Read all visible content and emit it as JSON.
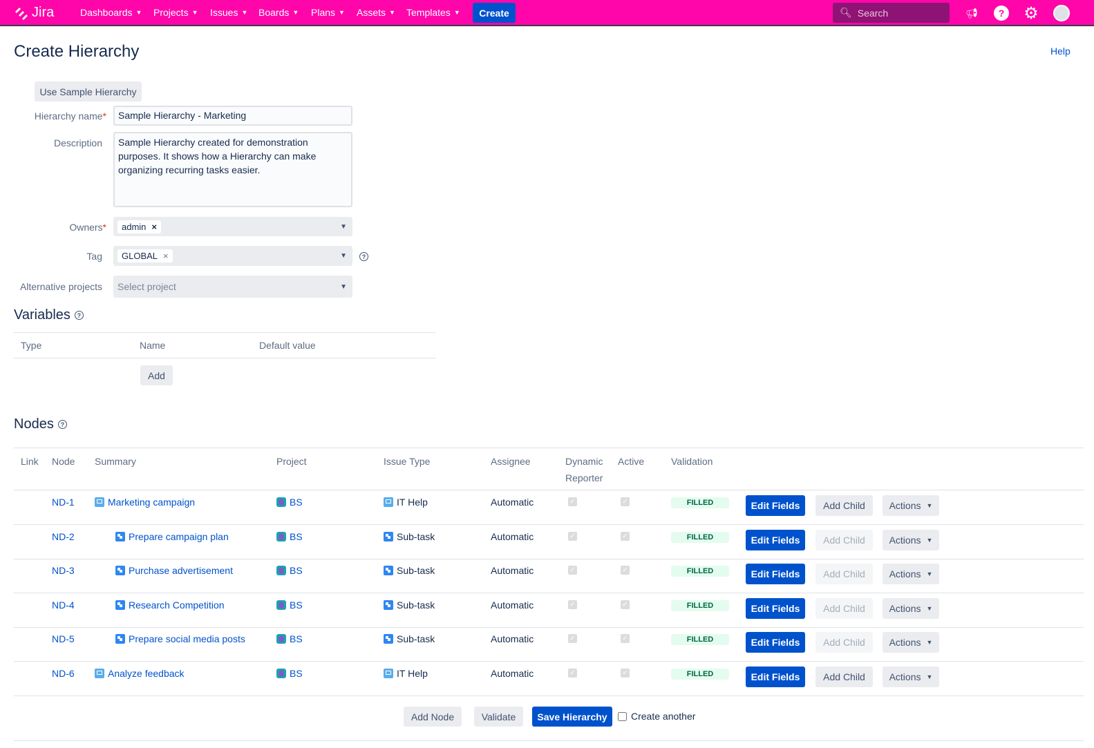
{
  "nav": {
    "logo": "Jira",
    "items": [
      "Dashboards",
      "Projects",
      "Issues",
      "Boards",
      "Plans",
      "Assets",
      "Templates"
    ],
    "create": "Create",
    "search_placeholder": "Search"
  },
  "page": {
    "title": "Create Hierarchy",
    "help": "Help"
  },
  "form": {
    "sample_button": "Use Sample Hierarchy",
    "name_label": "Hierarchy name",
    "name_value": "Sample Hierarchy - Marketing",
    "description_label": "Description",
    "description_value": "Sample Hierarchy created for demonstration purposes. It shows how a Hierarchy can make organizing recurring tasks easier.",
    "owners_label": "Owners",
    "owners_value": "admin",
    "tag_label": "Tag",
    "tag_value": "GLOBAL",
    "alt_label": "Alternative projects",
    "alt_placeholder": "Select project"
  },
  "variables": {
    "title": "Variables",
    "headers": [
      "Type",
      "Name",
      "Default value"
    ],
    "add": "Add"
  },
  "nodes": {
    "title": "Nodes",
    "headers": [
      "Link",
      "Node",
      "Summary",
      "Project",
      "Issue Type",
      "Assignee",
      "Dynamic Reporter",
      "Active",
      "Validation"
    ],
    "rows": [
      {
        "node": "ND-1",
        "summary": "Marketing campaign",
        "level": 0,
        "project": "BS",
        "issue_type": "IT Help",
        "assignee": "Automatic",
        "validation": "FILLED",
        "add_child_enabled": true
      },
      {
        "node": "ND-2",
        "summary": "Prepare campaign plan",
        "level": 1,
        "project": "BS",
        "issue_type": "Sub-task",
        "assignee": "Automatic",
        "validation": "FILLED",
        "add_child_enabled": false
      },
      {
        "node": "ND-3",
        "summary": "Purchase advertisement",
        "level": 1,
        "project": "BS",
        "issue_type": "Sub-task",
        "assignee": "Automatic",
        "validation": "FILLED",
        "add_child_enabled": false
      },
      {
        "node": "ND-4",
        "summary": "Research Competition",
        "level": 1,
        "project": "BS",
        "issue_type": "Sub-task",
        "assignee": "Automatic",
        "validation": "FILLED",
        "add_child_enabled": false
      },
      {
        "node": "ND-5",
        "summary": "Prepare social media posts",
        "level": 1,
        "project": "BS",
        "issue_type": "Sub-task",
        "assignee": "Automatic",
        "validation": "FILLED",
        "add_child_enabled": false
      },
      {
        "node": "ND-6",
        "summary": "Analyze feedback",
        "level": 0,
        "project": "BS",
        "issue_type": "IT Help",
        "assignee": "Automatic",
        "validation": "FILLED",
        "add_child_enabled": true
      }
    ],
    "edit_fields": "Edit Fields",
    "add_child": "Add Child",
    "actions": "Actions"
  },
  "footer": {
    "add_node": "Add Node",
    "validate": "Validate",
    "save": "Save Hierarchy",
    "create_another": "Create another"
  },
  "colors": {
    "nav": "#ff06aa",
    "primary": "#0052cc"
  }
}
